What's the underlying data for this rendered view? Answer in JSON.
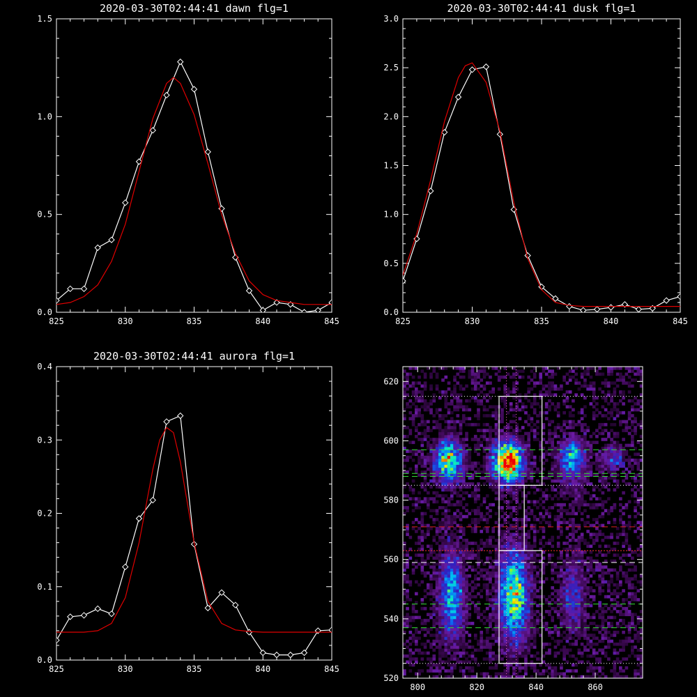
{
  "chart_data": [
    {
      "type": "line",
      "title": "2020-03-30T02:44:41 dawn flg=1",
      "xlim": [
        825,
        845
      ],
      "ylim": [
        0,
        1.5
      ],
      "xticks": [
        825,
        830,
        835,
        840,
        845
      ],
      "xticklabels": [
        "825",
        "830",
        "835",
        "840",
        "845"
      ],
      "yticks": [
        0,
        0.5,
        1.0,
        1.5
      ],
      "yticklabels": [
        "0.0",
        "0.5",
        "1.0",
        "1.5"
      ],
      "grid": false,
      "series": [
        {
          "kind": "data",
          "color": "#ffffff",
          "marker": "diamond",
          "x": [
            825,
            826,
            827,
            828,
            829,
            830,
            831,
            832,
            833,
            834,
            835,
            836,
            837,
            838,
            839,
            840,
            841,
            842,
            843,
            844,
            845
          ],
          "y": [
            0.06,
            0.12,
            0.12,
            0.33,
            0.37,
            0.56,
            0.77,
            0.93,
            1.11,
            1.28,
            1.14,
            0.82,
            0.53,
            0.28,
            0.11,
            0.01,
            0.05,
            0.04,
            0.0,
            0.01,
            0.05
          ]
        },
        {
          "kind": "fit",
          "color": "#e00000",
          "x": [
            825,
            826,
            827,
            828,
            829,
            830,
            831,
            832,
            833,
            833.5,
            834,
            835,
            836,
            837,
            838,
            839,
            840,
            841,
            842,
            843,
            844,
            845
          ],
          "y": [
            0.04,
            0.05,
            0.08,
            0.14,
            0.26,
            0.45,
            0.72,
            0.99,
            1.17,
            1.2,
            1.17,
            1.01,
            0.76,
            0.5,
            0.3,
            0.16,
            0.09,
            0.06,
            0.05,
            0.04,
            0.04,
            0.04
          ]
        }
      ]
    },
    {
      "type": "line",
      "title": "2020-03-30T02:44:41 dusk flg=1",
      "xlim": [
        825,
        845
      ],
      "ylim": [
        0,
        3.0
      ],
      "xticks": [
        825,
        830,
        835,
        840,
        845
      ],
      "xticklabels": [
        "825",
        "830",
        "835",
        "840",
        "845"
      ],
      "yticks": [
        0,
        0.5,
        1.0,
        1.5,
        2.0,
        2.5,
        3.0
      ],
      "yticklabels": [
        "0.0",
        "0.5",
        "1.0",
        "1.5",
        "2.0",
        "2.5",
        "3.0"
      ],
      "grid": false,
      "series": [
        {
          "kind": "data",
          "color": "#ffffff",
          "marker": "diamond",
          "x": [
            825,
            826,
            827,
            828,
            829,
            830,
            831,
            832,
            833,
            834,
            835,
            836,
            837,
            838,
            839,
            840,
            841,
            842,
            843,
            844,
            845
          ],
          "y": [
            0.32,
            0.75,
            1.24,
            1.84,
            2.2,
            2.48,
            2.51,
            1.82,
            1.05,
            0.58,
            0.26,
            0.14,
            0.06,
            0.02,
            0.03,
            0.05,
            0.08,
            0.03,
            0.04,
            0.12,
            0.16
          ]
        },
        {
          "kind": "fit",
          "color": "#e00000",
          "x": [
            825,
            826,
            827,
            828,
            829,
            829.5,
            830,
            831,
            832,
            833,
            834,
            835,
            836,
            837,
            838,
            839,
            840,
            841,
            842,
            843,
            844,
            845
          ],
          "y": [
            0.38,
            0.8,
            1.35,
            1.95,
            2.4,
            2.52,
            2.55,
            2.35,
            1.85,
            1.12,
            0.55,
            0.23,
            0.1,
            0.07,
            0.06,
            0.06,
            0.06,
            0.06,
            0.06,
            0.06,
            0.06,
            0.06
          ]
        }
      ]
    },
    {
      "type": "line",
      "title": "2020-03-30T02:44:41 aurora flg=1",
      "xlim": [
        825,
        845
      ],
      "ylim": [
        0,
        0.4
      ],
      "xticks": [
        825,
        830,
        835,
        840,
        845
      ],
      "xticklabels": [
        "825",
        "830",
        "835",
        "840",
        "845"
      ],
      "yticks": [
        0,
        0.1,
        0.2,
        0.3,
        0.4
      ],
      "yticklabels": [
        "0.0",
        "0.1",
        "0.2",
        "0.3",
        "0.4"
      ],
      "grid": false,
      "series": [
        {
          "kind": "data",
          "color": "#ffffff",
          "marker": "diamond",
          "x": [
            825,
            826,
            827,
            828,
            829,
            830,
            831,
            832,
            833,
            834,
            835,
            836,
            837,
            838,
            839,
            840,
            841,
            842,
            843,
            844,
            845
          ],
          "y": [
            0.027,
            0.059,
            0.061,
            0.07,
            0.063,
            0.127,
            0.193,
            0.218,
            0.325,
            0.333,
            0.158,
            0.071,
            0.092,
            0.075,
            0.038,
            0.01,
            0.007,
            0.007,
            0.01,
            0.04,
            0.041
          ]
        },
        {
          "kind": "fit",
          "color": "#e00000",
          "x": [
            825,
            827,
            828,
            829,
            830,
            831,
            832,
            832.5,
            833,
            833.5,
            834,
            835,
            836,
            837,
            838,
            839,
            840,
            842,
            845
          ],
          "y": [
            0.038,
            0.038,
            0.04,
            0.05,
            0.085,
            0.16,
            0.26,
            0.3,
            0.317,
            0.31,
            0.27,
            0.16,
            0.08,
            0.05,
            0.041,
            0.039,
            0.038,
            0.038,
            0.038
          ]
        }
      ]
    },
    {
      "type": "heatmap",
      "title": "",
      "xlim": [
        795,
        876
      ],
      "ylim": [
        520,
        625
      ],
      "xticks": [
        800,
        820,
        840,
        860
      ],
      "xticklabels": [
        "800",
        "820",
        "840",
        "860"
      ],
      "yticks": [
        520,
        540,
        560,
        580,
        600,
        620
      ],
      "yticklabels": [
        "520",
        "540",
        "560",
        "580",
        "600",
        "620"
      ],
      "colormap": [
        "#000000",
        "#3a0850",
        "#6a1aa0",
        "#3020c0",
        "#1060f0",
        "#00c0f0",
        "#10f0b0",
        "#90f030",
        "#f0f000",
        "#f08000",
        "#f00000"
      ],
      "noise_seed": 7,
      "blobs": [
        {
          "x": 810.5,
          "y": 593,
          "sx": 3,
          "sy": 4.5,
          "amp": 0.68
        },
        {
          "x": 830.5,
          "y": 593,
          "sx": 3.3,
          "sy": 4.3,
          "amp": 1.0
        },
        {
          "x": 852.5,
          "y": 595,
          "sx": 2.3,
          "sy": 3.5,
          "amp": 0.4
        },
        {
          "x": 866,
          "y": 594,
          "sx": 2.5,
          "sy": 2.5,
          "amp": 0.25
        },
        {
          "x": 811.5,
          "y": 548,
          "sx": 2.6,
          "sy": 10,
          "amp": 0.45
        },
        {
          "x": 832.5,
          "y": 548,
          "sx": 3.2,
          "sy": 10,
          "amp": 0.65
        },
        {
          "x": 852.5,
          "y": 548,
          "sx": 2.5,
          "sy": 9,
          "amp": 0.22
        },
        {
          "x": 852,
          "y": 590,
          "sx": 4,
          "sy": 6,
          "amp": 0.15
        }
      ],
      "overlays": {
        "hlines_dotted_white": [
          615,
          585,
          563,
          525
        ],
        "hlines_dashed_green": [
          597,
          589,
          588,
          545,
          537
        ],
        "hline_dashed_red": 571,
        "hline_dotted_red": 563,
        "hline_dashed_white": 559,
        "vlines_dotted_pink": [
          830,
          833.3
        ],
        "box_upper": {
          "x": [
            827.5,
            842
          ],
          "y": [
            585,
            615
          ]
        },
        "box_middle": {
          "x": [
            827.5,
            836
          ],
          "y": [
            563,
            585
          ]
        },
        "box_lower": {
          "x": [
            827.5,
            842
          ],
          "y": [
            525,
            563
          ]
        }
      }
    }
  ]
}
